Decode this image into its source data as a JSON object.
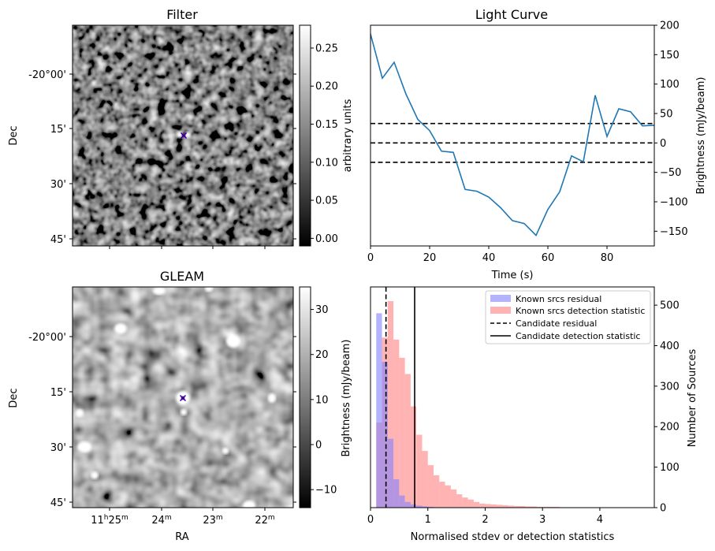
{
  "panels": {
    "filter": {
      "title": "Filter",
      "ylabel": "Dec",
      "y_ticks": [
        "-20°00'",
        "15'",
        "30'",
        "45'"
      ],
      "colorbar_label": "arbitrary units",
      "colorbar_ticks": [
        "0.25",
        "0.20",
        "0.15",
        "0.10",
        "0.05",
        "0.00"
      ],
      "colorbar_range": [
        -0.01,
        0.28
      ]
    },
    "gleam": {
      "title": "GLEAM",
      "ylabel": "Dec",
      "xlabel": "RA",
      "y_ticks": [
        "-20°00'",
        "15'",
        "30'",
        "45'"
      ],
      "x_ticks": [
        {
          "main": "11",
          "sup1": "h",
          "mid": "25",
          "sup2": "m"
        },
        {
          "main": "24",
          "sup1": "",
          "mid": "",
          "sup2": "m"
        },
        {
          "main": "23",
          "sup1": "",
          "mid": "",
          "sup2": "m"
        },
        {
          "main": "22",
          "sup1": "",
          "mid": "",
          "sup2": "m"
        }
      ],
      "colorbar_ticks": [
        "30",
        "20",
        "10",
        "0",
        "−10"
      ],
      "colorbar_range": [
        -14,
        35
      ]
    },
    "light_curve": {
      "title": "Light Curve",
      "xlabel": "Time (s)",
      "ylabel": "Brightness (mJy/beam)",
      "x_ticks": [
        "0",
        "20",
        "40",
        "60",
        "80"
      ],
      "y_ticks": [
        "200",
        "150",
        "100",
        "50",
        "0",
        "−50",
        "−100",
        "−150"
      ]
    },
    "histogram": {
      "xlabel": "Normalised stdev or detection statistics",
      "ylabel_left": "Brightness (mJy/beam)",
      "ylabel_right": "Number of Sources",
      "x_ticks": [
        "0",
        "1",
        "2",
        "3",
        "4"
      ],
      "y_ticks": [
        "500",
        "400",
        "300",
        "200",
        "100",
        "0"
      ],
      "legend": [
        {
          "label": "Known srcs residual"
        },
        {
          "label": "Known srcs detection statistic"
        },
        {
          "label": "Candidate residual"
        },
        {
          "label": "Candidate detection statistic"
        }
      ]
    }
  },
  "colors": {
    "line": "#1f77b4",
    "residual_hist": "#8080ff",
    "detection_hist": "#ff8080",
    "marker": "#ff0000",
    "marker_x": "#0000cc"
  },
  "chart_data": [
    {
      "type": "line",
      "name": "light_curve",
      "xlim": [
        0,
        96
      ],
      "ylim": [
        -175,
        200
      ],
      "x": [
        0,
        4,
        8,
        12,
        16,
        20,
        24,
        28,
        32,
        36,
        40,
        44,
        48,
        52,
        56,
        60,
        64,
        68,
        72,
        76,
        80,
        84,
        88,
        92,
        96
      ],
      "y": [
        185,
        110,
        137,
        83,
        40,
        21,
        -14,
        -16,
        -79,
        -82,
        -92,
        -110,
        -132,
        -137,
        -157,
        -113,
        -83,
        -22,
        -32,
        81,
        11,
        58,
        53,
        29,
        30
      ],
      "hlines": [
        33,
        0,
        -33
      ]
    },
    {
      "type": "bar",
      "name": "histogram",
      "xlim": [
        0,
        4.95
      ],
      "ylim": [
        0,
        545
      ],
      "bin_width": 0.1,
      "series": [
        {
          "name": "Known srcs residual",
          "bin_starts": [
            0.0,
            0.1,
            0.2,
            0.3,
            0.4,
            0.5,
            0.6,
            0.7,
            0.8,
            0.9,
            1.0,
            1.1,
            1.2
          ],
          "values": [
            0,
            480,
            360,
            170,
            70,
            30,
            14,
            8,
            5,
            3,
            2,
            1,
            1
          ]
        },
        {
          "name": "Known srcs detection statistic",
          "bin_starts": [
            0.1,
            0.2,
            0.3,
            0.4,
            0.5,
            0.6,
            0.7,
            0.8,
            0.9,
            1.0,
            1.1,
            1.2,
            1.3,
            1.4,
            1.5,
            1.6,
            1.7,
            1.8,
            1.9,
            2.0,
            2.1,
            2.2,
            2.3,
            2.4,
            2.5,
            2.6,
            2.7,
            2.8,
            2.9,
            3.0,
            3.1,
            3.2,
            3.3,
            3.4,
            3.5,
            3.6,
            3.7,
            3.8,
            3.9,
            4.0
          ],
          "values": [
            210,
            420,
            510,
            415,
            370,
            330,
            250,
            180,
            140,
            105,
            80,
            64,
            55,
            45,
            33,
            25,
            20,
            14,
            10,
            9,
            8,
            7,
            6,
            5,
            4,
            4,
            3,
            3,
            2,
            2,
            2,
            2,
            1,
            1,
            1,
            1,
            1,
            1,
            1,
            1
          ]
        }
      ],
      "vlines": [
        {
          "name": "Candidate residual",
          "x": 0.27,
          "style": "dashed"
        },
        {
          "name": "Candidate detection statistic",
          "x": 0.77,
          "style": "solid"
        }
      ]
    }
  ]
}
